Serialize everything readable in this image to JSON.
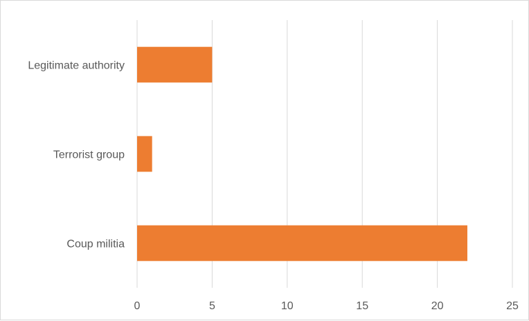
{
  "chart_data": {
    "type": "bar",
    "orientation": "horizontal",
    "categories": [
      "Legitimate authority",
      "Terrorist group",
      "Coup militia"
    ],
    "values": [
      5,
      1,
      22
    ],
    "xlim": [
      0,
      25
    ],
    "xticks": [
      "0",
      "5",
      "10",
      "15",
      "20",
      "25"
    ],
    "title": "",
    "xlabel": "",
    "ylabel": "",
    "grid": "vertical",
    "legend": "none",
    "bar_color": "#ED7D31",
    "grid_color": "#d9d9d9",
    "label_color": "#595959"
  }
}
